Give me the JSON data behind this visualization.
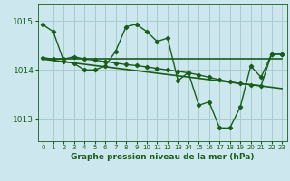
{
  "title": "Graphe pression niveau de la mer (hPa)",
  "ylabel_ticks": [
    1013,
    1014,
    1015
  ],
  "xlim": [
    -0.5,
    23.5
  ],
  "ylim": [
    1012.55,
    1015.35
  ],
  "bg_color": "#cce8ee",
  "grid_color": "#aacccc",
  "line_color": "#1a5c1a",
  "line1_x": [
    0,
    1,
    2,
    3,
    4,
    5,
    6,
    7,
    8,
    9,
    10,
    11,
    12,
    13,
    14,
    15,
    16,
    17,
    18,
    19,
    20,
    21,
    22,
    23
  ],
  "line1_y": [
    1014.92,
    1014.78,
    1014.18,
    1014.13,
    1014.0,
    1014.0,
    1014.08,
    1014.38,
    1014.88,
    1014.93,
    1014.78,
    1014.58,
    1014.65,
    1013.78,
    1013.95,
    1013.28,
    1013.35,
    1012.82,
    1012.82,
    1013.25,
    1014.08,
    1013.85,
    1014.32,
    1014.32
  ],
  "line2_x": [
    0,
    1,
    2,
    3,
    4,
    5,
    6,
    7,
    8,
    9,
    10,
    11,
    12,
    13,
    14,
    15,
    16,
    17,
    18,
    19,
    20,
    21,
    22,
    23
  ],
  "line2_y": [
    1014.25,
    1014.22,
    1014.22,
    1014.27,
    1014.22,
    1014.2,
    1014.17,
    1014.14,
    1014.11,
    1014.09,
    1014.06,
    1014.03,
    1014.0,
    1013.97,
    1013.94,
    1013.9,
    1013.85,
    1013.8,
    1013.76,
    1013.72,
    1013.7,
    1013.68,
    1014.32,
    1014.32
  ],
  "line3_x": [
    0,
    23
  ],
  "line3_y": [
    1014.22,
    1014.22
  ],
  "line4_x": [
    0,
    23
  ],
  "line4_y": [
    1014.22,
    1013.62
  ]
}
